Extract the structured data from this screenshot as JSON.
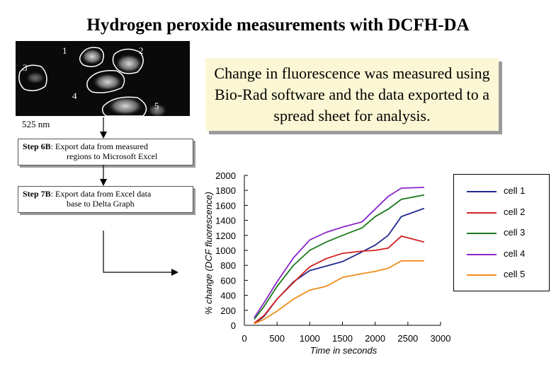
{
  "title": "Hydrogen peroxide measurements with DCFH-DA",
  "image_panel": {
    "region_labels": [
      "1",
      "2",
      "3",
      "4",
      "5"
    ],
    "wavelength_label": "525 nm"
  },
  "callout": {
    "text": "Change in fluorescence was measured using Bio-Rad software and the data exported to a spread sheet for analysis."
  },
  "steps": [
    {
      "label": "Step 6B",
      "line1": ": Export data from measured",
      "line2": "regions to Microsoft Excel"
    },
    {
      "label": "Step 7B",
      "line1": ": Export data from Excel data",
      "line2": "base to Delta Graph"
    }
  ],
  "colors": {
    "cell1": "#1f2a8f",
    "cell2": "#d42020",
    "cell3": "#1a7a1a",
    "cell4": "#8a25c9",
    "cell5": "#f28c1c",
    "callout_bg": "#fbf7d4"
  },
  "chart_data": {
    "type": "line",
    "xlabel": "Time in seconds",
    "ylabel": "% change (DCF fluorescence)",
    "xlim": [
      0,
      3000
    ],
    "ylim": [
      0,
      2000
    ],
    "xticks": [
      0,
      500,
      1000,
      1500,
      2000,
      2500,
      3000
    ],
    "yticks": [
      0,
      200,
      400,
      600,
      800,
      1000,
      1200,
      1400,
      1600,
      1800,
      2000
    ],
    "legend_position": "right",
    "series": [
      {
        "name": "cell 1",
        "x": [
          150,
          300,
          500,
          750,
          1000,
          1250,
          1500,
          1800,
          2000,
          2200,
          2400,
          2750
        ],
        "y": [
          20,
          120,
          350,
          580,
          730,
          790,
          850,
          980,
          1070,
          1200,
          1450,
          1560
        ]
      },
      {
        "name": "cell 2",
        "x": [
          150,
          300,
          500,
          750,
          1000,
          1250,
          1500,
          1800,
          2000,
          2200,
          2400,
          2750
        ],
        "y": [
          30,
          130,
          350,
          570,
          780,
          890,
          960,
          990,
          1000,
          1030,
          1190,
          1110
        ]
      },
      {
        "name": "cell 3",
        "x": [
          150,
          300,
          500,
          750,
          1000,
          1250,
          1500,
          1800,
          2000,
          2200,
          2400,
          2750
        ],
        "y": [
          80,
          250,
          520,
          800,
          1000,
          1110,
          1200,
          1300,
          1450,
          1550,
          1680,
          1740
        ]
      },
      {
        "name": "cell 4",
        "x": [
          150,
          300,
          500,
          750,
          1000,
          1250,
          1500,
          1800,
          2000,
          2200,
          2400,
          2750
        ],
        "y": [
          100,
          300,
          580,
          900,
          1140,
          1240,
          1310,
          1380,
          1550,
          1720,
          1830,
          1840
        ]
      },
      {
        "name": "cell 5",
        "x": [
          150,
          300,
          500,
          750,
          1000,
          1250,
          1500,
          1800,
          2000,
          2200,
          2400,
          2750
        ],
        "y": [
          20,
          80,
          190,
          350,
          470,
          520,
          640,
          690,
          720,
          760,
          860,
          860
        ]
      }
    ]
  }
}
